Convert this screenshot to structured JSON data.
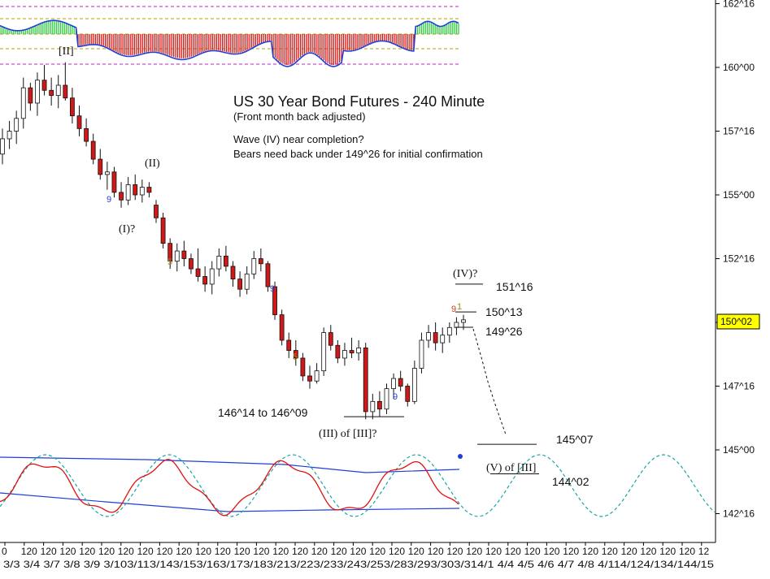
{
  "chart_data": {
    "type": "candlestick",
    "title": "US 30 Year Bond Futures - 240 Minute",
    "subtitle": "(Front month back adjusted)",
    "notes": [
      "Wave (IV) near completion?",
      "Bears need back under 149^26 for initial confirmation"
    ],
    "price_axis": {
      "ticks": [
        {
          "label": "162^16",
          "value": 162.5
        },
        {
          "label": "160^00",
          "value": 160.0
        },
        {
          "label": "157^16",
          "value": 157.5
        },
        {
          "label": "155^00",
          "value": 155.0
        },
        {
          "label": "152^16",
          "value": 152.5
        },
        {
          "label": "150^00",
          "value": 150.0
        },
        {
          "label": "147^16",
          "value": 147.5
        },
        {
          "label": "145^00",
          "value": 145.0
        },
        {
          "label": "142^16",
          "value": 142.5
        }
      ],
      "current_price": {
        "label": "150^02",
        "value": 150.06
      }
    },
    "time_axis": {
      "hours": [
        "0",
        "120",
        "120",
        "120",
        "120",
        "120",
        "120",
        "120",
        "120",
        "120",
        "120",
        "120",
        "120",
        "120",
        "120",
        "120",
        "120",
        "120",
        "120",
        "120",
        "120",
        "120",
        "120",
        "120",
        "120",
        "120",
        "120",
        "120",
        "120",
        "120",
        "120",
        "120",
        "120",
        "120",
        "120",
        "120",
        "12"
      ],
      "dates": [
        "3/3",
        "3/4",
        "3/7",
        "3/8",
        "3/9",
        "3/10",
        "3/11",
        "3/14",
        "3/15",
        "3/16",
        "3/17",
        "3/18",
        "3/21",
        "3/22",
        "3/23",
        "3/24",
        "3/25",
        "3/28",
        "3/29",
        "3/30",
        "3/31",
        "4/1",
        "4/4",
        "4/5",
        "4/6",
        "4/7",
        "4/8",
        "4/11",
        "4/12",
        "4/13",
        "4/14",
        "4/15"
      ],
      "date_label_text": "3/3  3/4  3/7  3/8  3/9  3/103/113/143/153/163/173/183/213/223/233/243/253/283/293/303/314/1  4/4  4/5  4/6  4/7  4/8  4/114/124/134/144/15"
    },
    "bars": [
      {
        "o": 156.6,
        "h": 157.6,
        "l": 156.2,
        "c": 157.2
      },
      {
        "o": 157.2,
        "h": 157.9,
        "l": 156.8,
        "c": 157.5
      },
      {
        "o": 157.5,
        "h": 158.3,
        "l": 157.0,
        "c": 158.0
      },
      {
        "o": 158.0,
        "h": 159.6,
        "l": 157.6,
        "c": 159.2
      },
      {
        "o": 159.2,
        "h": 159.4,
        "l": 158.3,
        "c": 158.6
      },
      {
        "o": 158.6,
        "h": 159.8,
        "l": 158.1,
        "c": 159.5
      },
      {
        "o": 159.5,
        "h": 160.1,
        "l": 158.9,
        "c": 159.1
      },
      {
        "o": 159.1,
        "h": 159.6,
        "l": 158.5,
        "c": 158.9
      },
      {
        "o": 158.9,
        "h": 159.7,
        "l": 158.4,
        "c": 159.3
      },
      {
        "o": 159.3,
        "h": 160.2,
        "l": 158.7,
        "c": 158.8
      },
      {
        "o": 158.8,
        "h": 159.2,
        "l": 157.8,
        "c": 158.1
      },
      {
        "o": 158.1,
        "h": 158.5,
        "l": 157.3,
        "c": 157.6
      },
      {
        "o": 157.6,
        "h": 158.0,
        "l": 156.9,
        "c": 157.1
      },
      {
        "o": 157.1,
        "h": 157.4,
        "l": 156.2,
        "c": 156.4
      },
      {
        "o": 156.4,
        "h": 156.8,
        "l": 155.6,
        "c": 155.8
      },
      {
        "o": 155.8,
        "h": 156.3,
        "l": 155.2,
        "c": 155.9
      },
      {
        "o": 155.9,
        "h": 156.1,
        "l": 154.9,
        "c": 155.1
      },
      {
        "o": 155.1,
        "h": 155.5,
        "l": 154.5,
        "c": 154.8
      },
      {
        "o": 154.8,
        "h": 155.7,
        "l": 154.6,
        "c": 155.4
      },
      {
        "o": 155.4,
        "h": 155.8,
        "l": 154.8,
        "c": 155.0
      },
      {
        "o": 155.0,
        "h": 155.6,
        "l": 154.7,
        "c": 155.3
      },
      {
        "o": 155.3,
        "h": 155.5,
        "l": 154.9,
        "c": 155.1
      },
      {
        "o": 154.6,
        "h": 154.8,
        "l": 153.9,
        "c": 154.1
      },
      {
        "o": 154.1,
        "h": 154.3,
        "l": 152.9,
        "c": 153.1
      },
      {
        "o": 153.1,
        "h": 153.3,
        "l": 152.1,
        "c": 152.4
      },
      {
        "o": 152.4,
        "h": 153.1,
        "l": 152.0,
        "c": 152.8
      },
      {
        "o": 152.8,
        "h": 153.2,
        "l": 152.2,
        "c": 152.5
      },
      {
        "o": 152.5,
        "h": 152.7,
        "l": 151.9,
        "c": 152.1
      },
      {
        "o": 152.1,
        "h": 152.9,
        "l": 151.6,
        "c": 151.8
      },
      {
        "o": 151.8,
        "h": 152.2,
        "l": 151.2,
        "c": 151.5
      },
      {
        "o": 151.5,
        "h": 152.4,
        "l": 151.1,
        "c": 152.1
      },
      {
        "o": 152.1,
        "h": 152.9,
        "l": 151.8,
        "c": 152.6
      },
      {
        "o": 152.6,
        "h": 153.0,
        "l": 152.0,
        "c": 152.2
      },
      {
        "o": 152.2,
        "h": 152.4,
        "l": 151.4,
        "c": 151.7
      },
      {
        "o": 151.7,
        "h": 152.0,
        "l": 151.0,
        "c": 151.3
      },
      {
        "o": 151.3,
        "h": 152.2,
        "l": 151.1,
        "c": 151.9
      },
      {
        "o": 151.9,
        "h": 152.8,
        "l": 151.7,
        "c": 152.5
      },
      {
        "o": 152.5,
        "h": 152.9,
        "l": 152.0,
        "c": 152.3
      },
      {
        "o": 152.3,
        "h": 152.4,
        "l": 151.2,
        "c": 151.4
      },
      {
        "o": 151.4,
        "h": 151.6,
        "l": 150.1,
        "c": 150.3
      },
      {
        "o": 150.3,
        "h": 150.5,
        "l": 149.1,
        "c": 149.3
      },
      {
        "o": 149.3,
        "h": 149.6,
        "l": 148.6,
        "c": 148.9
      },
      {
        "o": 148.9,
        "h": 149.3,
        "l": 148.3,
        "c": 148.6
      },
      {
        "o": 148.6,
        "h": 148.8,
        "l": 147.7,
        "c": 147.9
      },
      {
        "o": 147.9,
        "h": 148.3,
        "l": 147.4,
        "c": 147.7
      },
      {
        "o": 147.7,
        "h": 148.4,
        "l": 147.6,
        "c": 148.1
      },
      {
        "o": 148.1,
        "h": 149.8,
        "l": 147.9,
        "c": 149.6
      },
      {
        "o": 149.6,
        "h": 149.9,
        "l": 148.9,
        "c": 149.1
      },
      {
        "o": 149.1,
        "h": 149.3,
        "l": 148.4,
        "c": 148.6
      },
      {
        "o": 148.6,
        "h": 149.2,
        "l": 148.3,
        "c": 148.9
      },
      {
        "o": 148.9,
        "h": 149.4,
        "l": 148.6,
        "c": 148.8
      },
      {
        "o": 148.8,
        "h": 149.3,
        "l": 148.5,
        "c": 149.0
      },
      {
        "o": 149.0,
        "h": 149.2,
        "l": 146.2,
        "c": 146.5
      },
      {
        "o": 146.5,
        "h": 147.2,
        "l": 146.2,
        "c": 146.9
      },
      {
        "o": 146.9,
        "h": 147.3,
        "l": 146.3,
        "c": 146.6
      },
      {
        "o": 146.6,
        "h": 147.6,
        "l": 146.4,
        "c": 147.4
      },
      {
        "o": 147.4,
        "h": 148.0,
        "l": 147.0,
        "c": 147.8
      },
      {
        "o": 147.8,
        "h": 148.1,
        "l": 147.3,
        "c": 147.5
      },
      {
        "o": 147.5,
        "h": 147.6,
        "l": 146.7,
        "c": 146.9
      },
      {
        "o": 146.9,
        "h": 148.5,
        "l": 146.8,
        "c": 148.2
      },
      {
        "o": 148.2,
        "h": 149.6,
        "l": 148.0,
        "c": 149.3
      },
      {
        "o": 149.3,
        "h": 149.9,
        "l": 149.0,
        "c": 149.6
      },
      {
        "o": 149.6,
        "h": 150.0,
        "l": 148.9,
        "c": 149.2
      },
      {
        "o": 149.2,
        "h": 149.8,
        "l": 148.8,
        "c": 149.5
      },
      {
        "o": 149.5,
        "h": 150.0,
        "l": 149.2,
        "c": 149.8
      },
      {
        "o": 149.8,
        "h": 150.2,
        "l": 149.5,
        "c": 150.0
      },
      {
        "o": 150.0,
        "h": 150.3,
        "l": 149.7,
        "c": 150.1
      }
    ],
    "horizontal_levels": [
      {
        "label": "151^16",
        "value": 151.5
      },
      {
        "label": "150^13",
        "value": 150.41
      },
      {
        "label": "149^26",
        "value": 149.81
      },
      {
        "label": "146^14 to 146^09",
        "value": 146.3
      },
      {
        "label": "145^07",
        "value": 145.22
      },
      {
        "label": "144^02",
        "value": 144.06
      }
    ],
    "wave_labels": [
      "[II]",
      "(II)",
      "(I)?",
      "(IV)?",
      "(III) of [III]?",
      "(V) of [III]"
    ],
    "count_labels": [
      {
        "text": "9",
        "color": "#1f3fd8"
      },
      {
        "text": "5",
        "color": "#9a8a18"
      },
      {
        "text": "9",
        "color": "#1f3fd8"
      },
      {
        "text": "5",
        "color": "#9a8a18"
      },
      {
        "text": "9",
        "color": "#1f3fd8"
      },
      {
        "text": "9",
        "color": "#d23a1e"
      },
      {
        "text": "1",
        "color": "#9a8a18"
      }
    ],
    "indicators": {
      "top_histogram": {
        "colors": {
          "positive": "#2ecc40",
          "negative": "#d01818",
          "line": "#1f3fd8",
          "guides": [
            "#c020c0",
            "#b8a000"
          ]
        }
      },
      "bottom_oscillator": {
        "colors": {
          "oscillator": "#e01010",
          "band": "#1f3fd8",
          "cycle": "#1aa5a5"
        }
      }
    },
    "colors": {
      "up_candle": "#ffffff",
      "down_candle": "#d01818",
      "wick": "#111111",
      "price_tag": "#ffff00"
    }
  }
}
